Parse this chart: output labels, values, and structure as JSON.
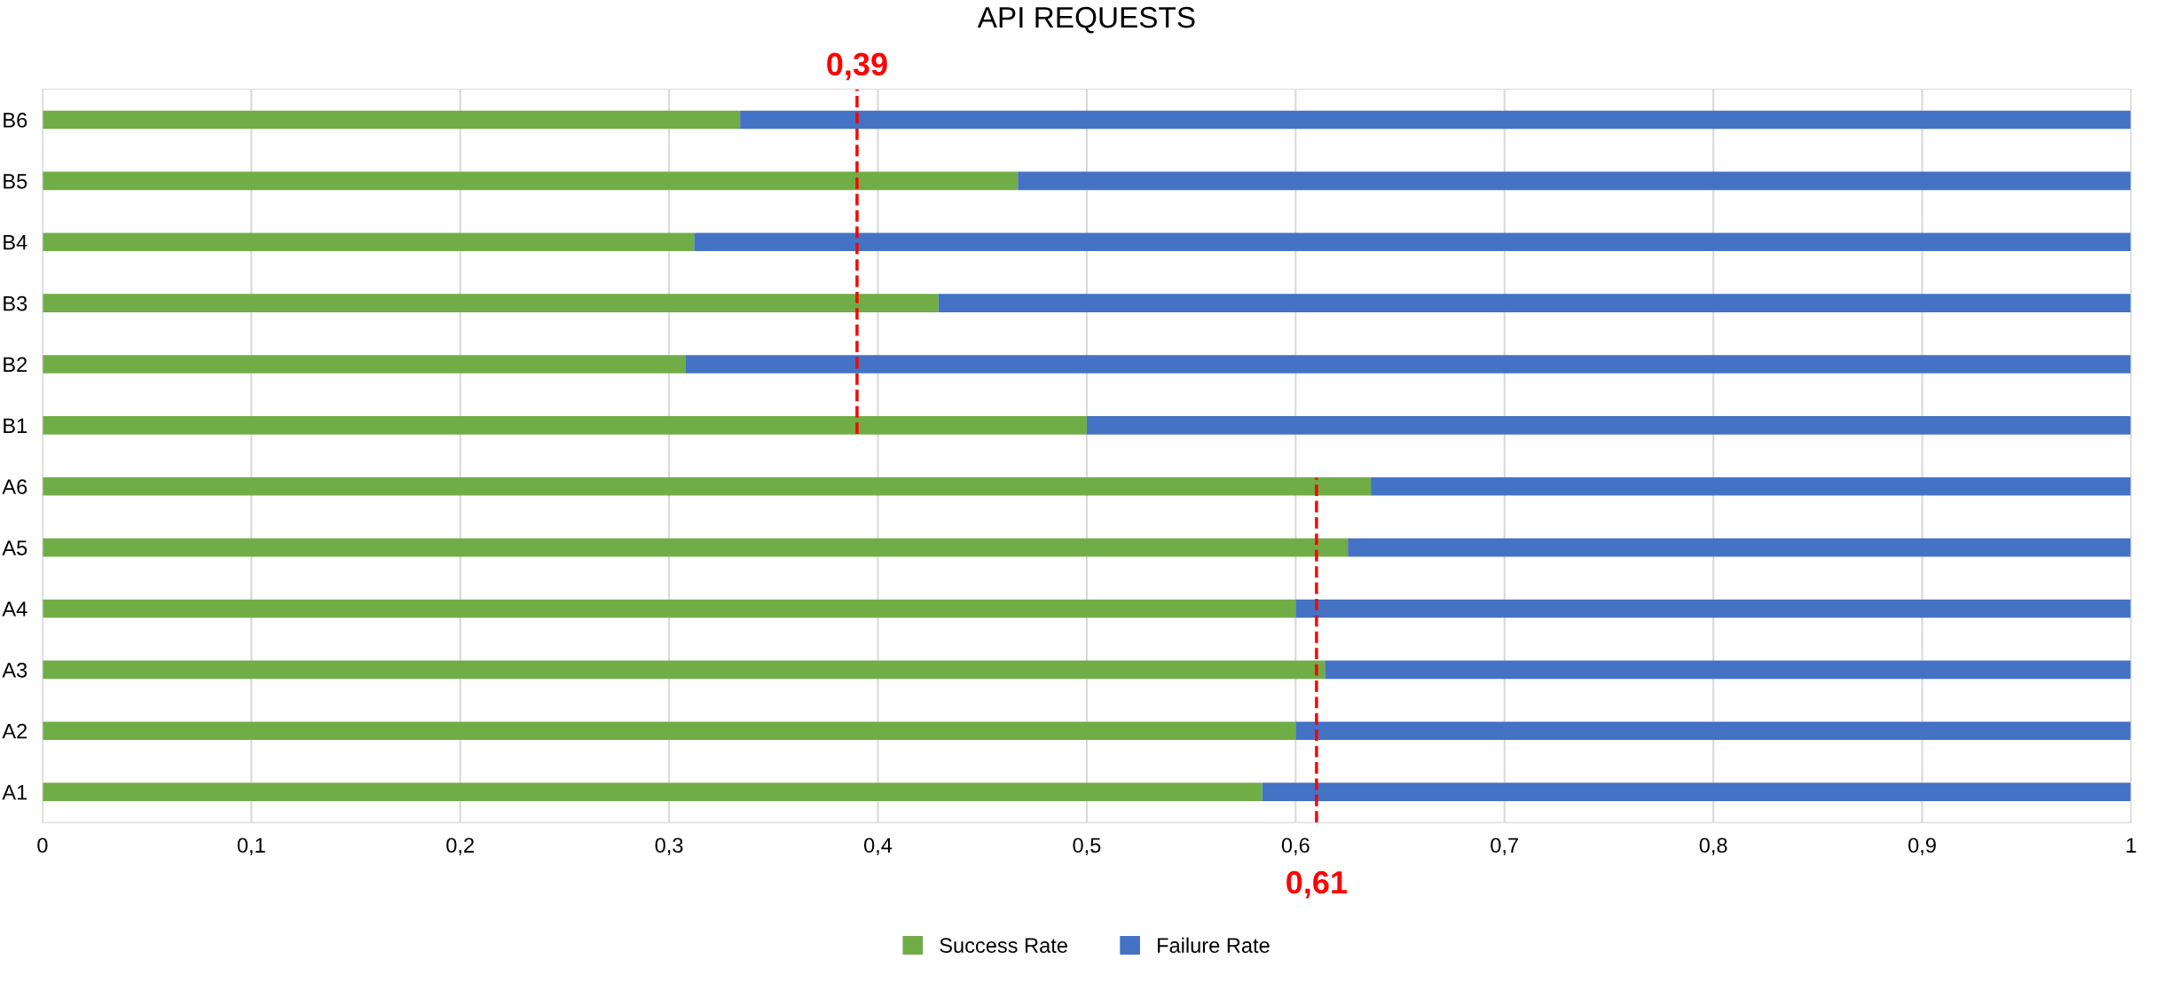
{
  "chart_data": {
    "type": "bar",
    "orientation": "horizontal",
    "stacked": true,
    "title": "API REQUESTS",
    "categories": [
      "B6",
      "B5",
      "B4",
      "B3",
      "B2",
      "B1",
      "A6",
      "A5",
      "A4",
      "A3",
      "A2",
      "A1"
    ],
    "series": [
      {
        "name": "Success Rate",
        "color": "#70ad47",
        "values": [
          0.334,
          0.467,
          0.312,
          0.429,
          0.308,
          0.5,
          0.636,
          0.625,
          0.6,
          0.614,
          0.6,
          0.584
        ]
      },
      {
        "name": "Failure Rate",
        "color": "#4472c4",
        "values": [
          0.666,
          0.533,
          0.688,
          0.571,
          0.692,
          0.5,
          0.364,
          0.375,
          0.4,
          0.386,
          0.4,
          0.416
        ]
      }
    ],
    "xlim": [
      0,
      1
    ],
    "xticks": [
      0,
      {
        "value": 0.1,
        "label": "0,1"
      },
      {
        "value": 0.2,
        "label": "0,2"
      },
      {
        "value": 0.3,
        "label": "0,3"
      },
      {
        "value": 0.4,
        "label": "0,4"
      },
      {
        "value": 0.5,
        "label": "0,5"
      },
      {
        "value": 0.6,
        "label": "0,6"
      },
      {
        "value": 0.7,
        "label": "0,7"
      },
      {
        "value": 0.8,
        "label": "0,8"
      },
      {
        "value": 0.9,
        "label": "0,9"
      },
      1
    ],
    "ref_lines": [
      {
        "axis": "x",
        "value": 0.39,
        "label": "0,39",
        "color": "#ff0000",
        "line_style": "dashed"
      },
      {
        "axis": "x",
        "value": 0.61,
        "label": "0,61",
        "color": "#ff0000",
        "line_style": "dashed"
      }
    ],
    "grid": "x",
    "legend": "bottom"
  }
}
